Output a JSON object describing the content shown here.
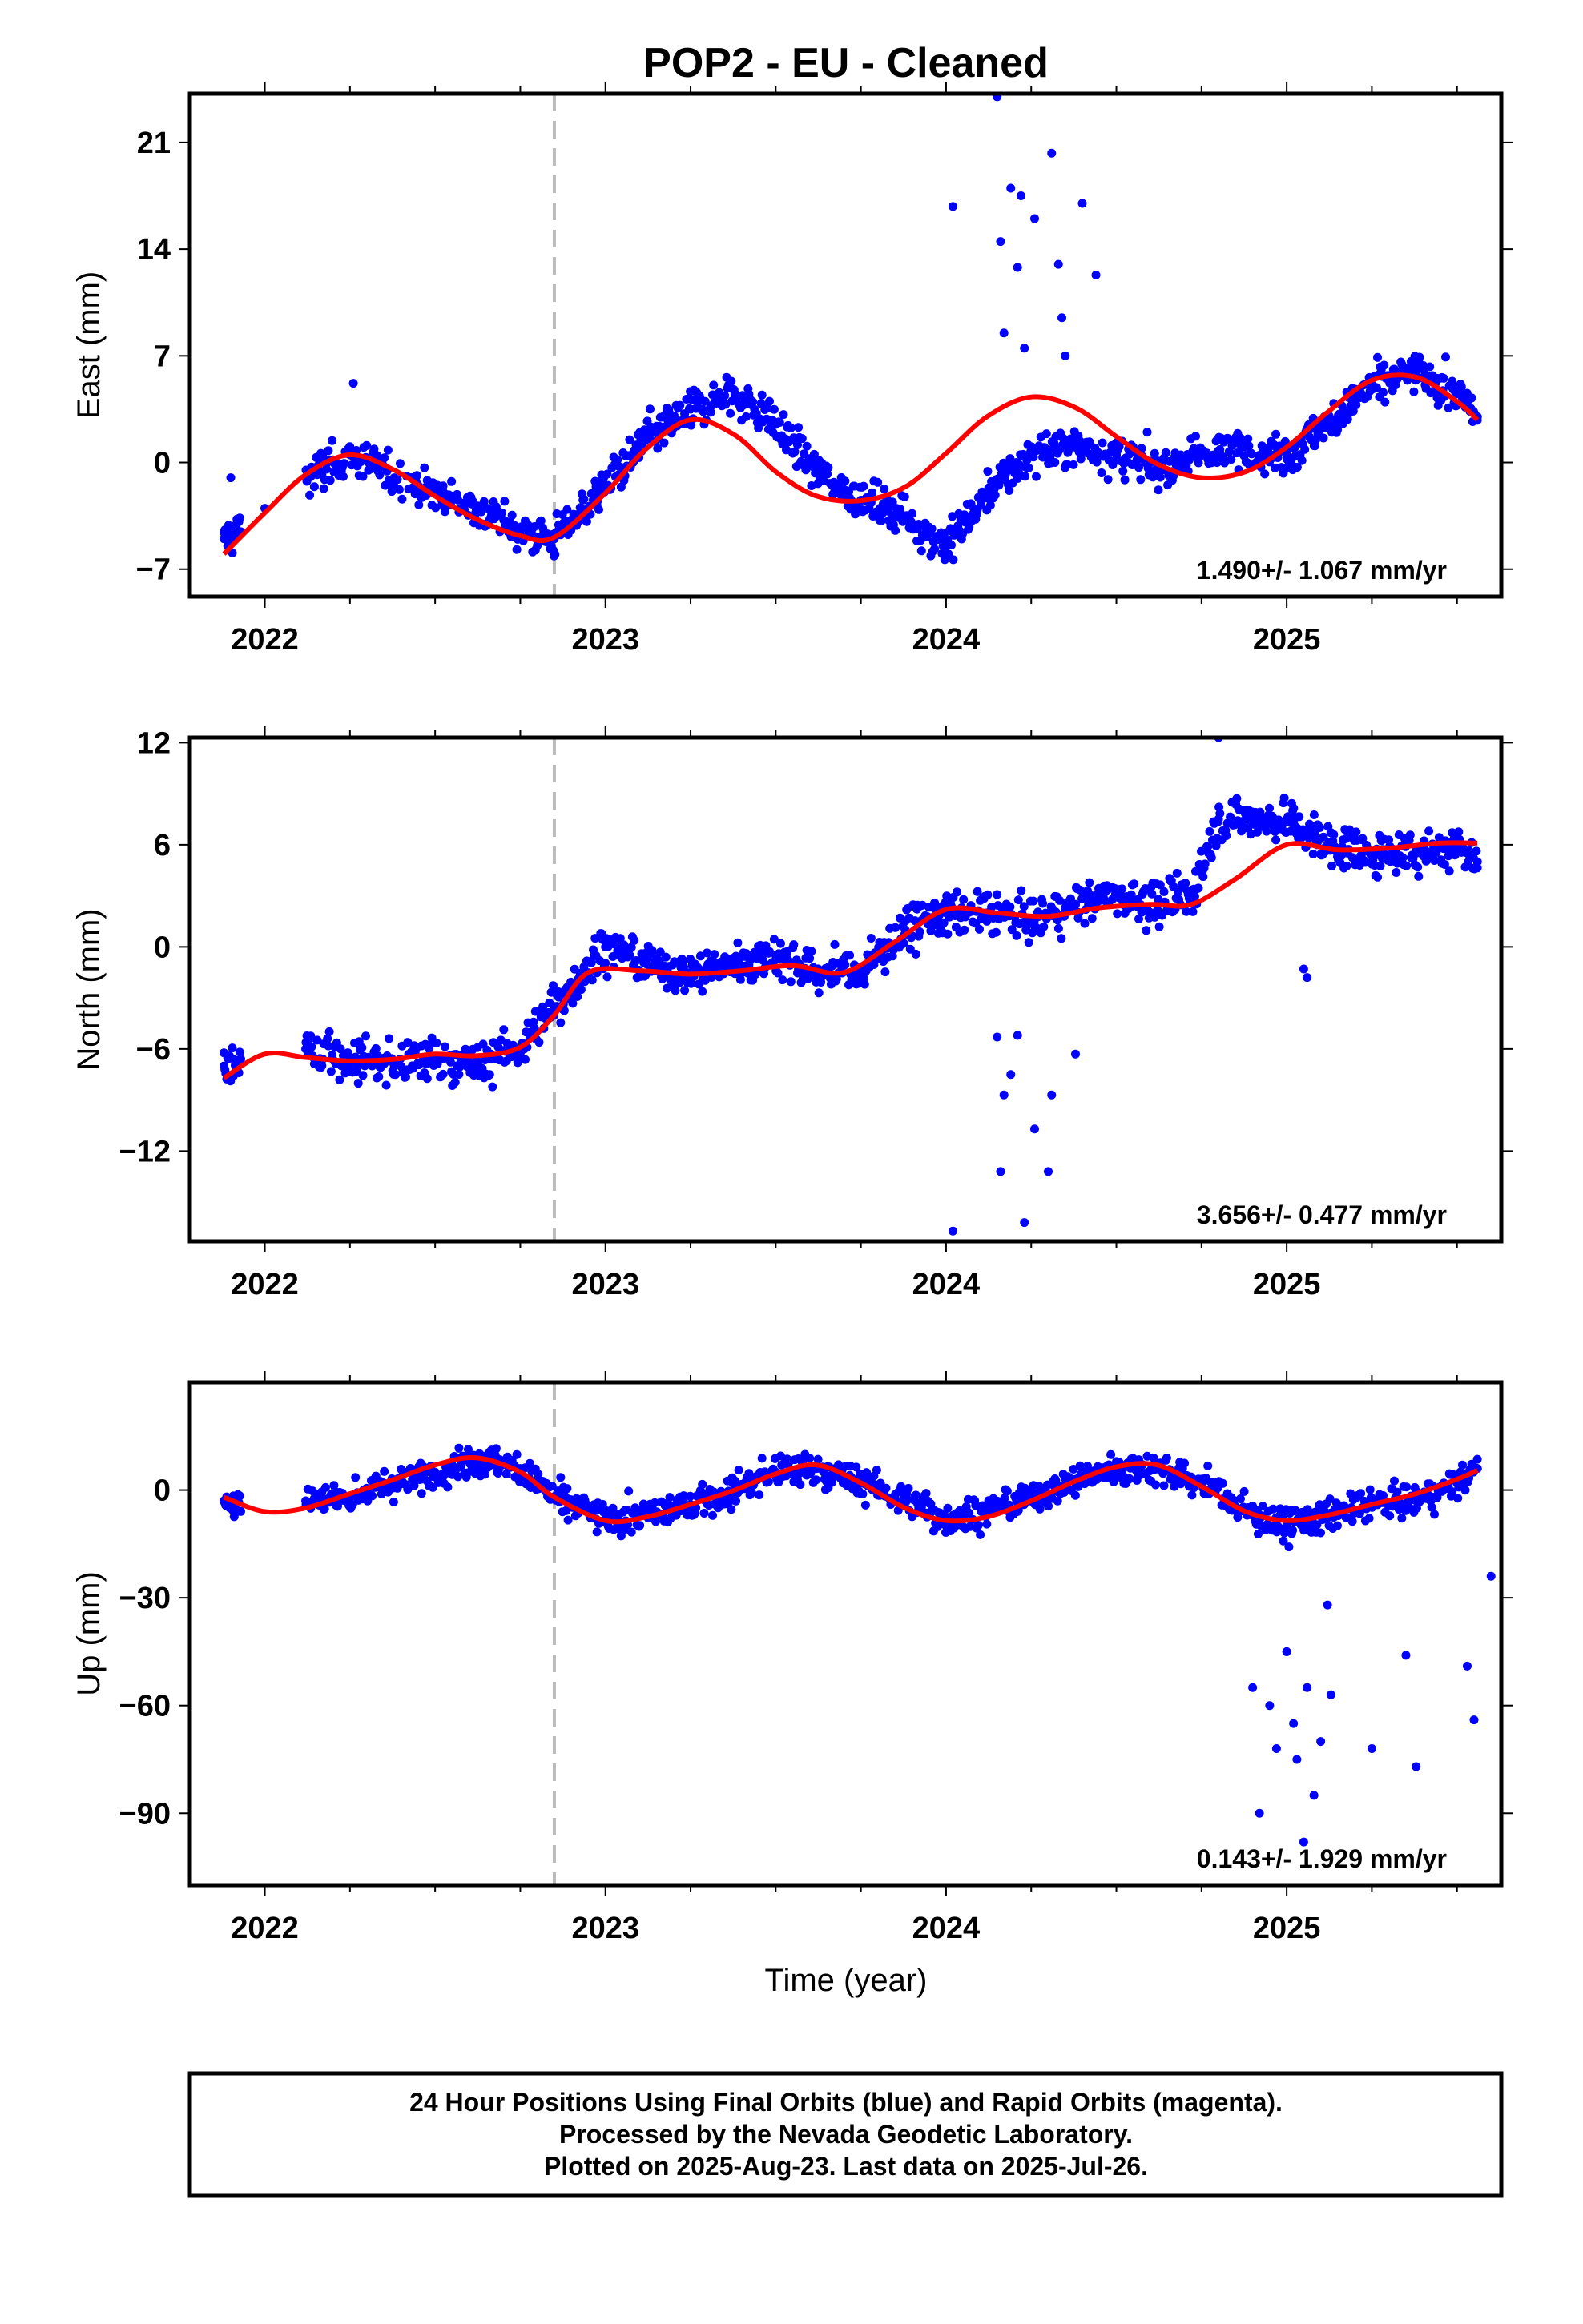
{
  "footer": {
    "line1": "24 Hour Positions Using Final Orbits (blue) and Rapid Orbits (magenta).",
    "line2": "Processed by the Nevada Geodetic Laboratory.",
    "line3": "Plotted on 2025-Aug-23. Last data on 2025-Jul-26."
  },
  "colors": {
    "final_points": "#0000ff",
    "model_line": "#ff0000",
    "equipment_change": "#bbbbbb",
    "frame": "#000000"
  },
  "chart_data": [
    {
      "type": "scatter",
      "title": "POP2  - EU - Cleaned",
      "xlabel": "",
      "ylabel": "East (mm)",
      "xlim": [
        2021.78,
        2025.63
      ],
      "ylim": [
        -8.8,
        24.2
      ],
      "yticks": [
        -7,
        0,
        7,
        14,
        21
      ],
      "xticks": [
        2022,
        2023,
        2024,
        2025
      ],
      "equipment_change_x": 2022.85,
      "rate_label": "1.490+/- 1.067 mm/yr",
      "series": [
        {
          "name": "Final Orbits (blue)",
          "style": "points",
          "x": [
            2021.88,
            2022.0,
            2022.12,
            2022.25,
            2022.38,
            2022.5,
            2022.62,
            2022.75,
            2022.85,
            2023.0,
            2023.12,
            2023.25,
            2023.38,
            2023.5,
            2023.62,
            2023.75,
            2023.88,
            2024.0,
            2024.12,
            2024.25,
            2024.38,
            2024.5,
            2024.62,
            2024.75,
            2024.88,
            2025.0,
            2025.12,
            2025.25,
            2025.38,
            2025.5,
            2025.56
          ],
          "y": [
            -5.0,
            -3.0,
            -1.0,
            0.5,
            -1.0,
            -2.0,
            -3.0,
            -4.5,
            -5.0,
            -1.5,
            1.5,
            3.5,
            4.5,
            2.5,
            -0.5,
            -2.5,
            -3.5,
            -5.5,
            -2.0,
            0.5,
            1.0,
            0.5,
            -0.5,
            0.5,
            1.0,
            0.5,
            2.5,
            5.0,
            6.0,
            4.5,
            3.0
          ]
        },
        {
          "name": "Final Orbits (blue) outliers",
          "style": "points",
          "x": [
            2024.02,
            2024.15,
            2024.16,
            2024.17,
            2024.19,
            2024.21,
            2024.22,
            2024.23,
            2024.26,
            2024.31,
            2024.33,
            2024.34,
            2024.35,
            2024.4,
            2024.44,
            2021.9,
            2022.26
          ],
          "y": [
            16.8,
            24.0,
            14.5,
            8.5,
            18.0,
            12.8,
            17.5,
            7.5,
            16.0,
            20.3,
            13.0,
            9.5,
            7.0,
            17.0,
            12.3,
            -1.0,
            5.2
          ]
        },
        {
          "name": "Model fit",
          "style": "line",
          "x": [
            2021.88,
            2022.0,
            2022.12,
            2022.25,
            2022.38,
            2022.5,
            2022.62,
            2022.75,
            2022.85,
            2023.0,
            2023.12,
            2023.25,
            2023.38,
            2023.5,
            2023.62,
            2023.75,
            2023.88,
            2024.0,
            2024.12,
            2024.25,
            2024.38,
            2024.5,
            2024.62,
            2024.75,
            2024.88,
            2025.0,
            2025.12,
            2025.25,
            2025.38,
            2025.5,
            2025.56
          ],
          "y": [
            -6.0,
            -3.3,
            -0.8,
            0.5,
            -0.5,
            -2.2,
            -3.7,
            -4.8,
            -4.9,
            -2.0,
            0.9,
            2.8,
            1.8,
            -0.6,
            -2.2,
            -2.5,
            -1.6,
            0.6,
            3.0,
            4.3,
            3.6,
            1.7,
            -0.1,
            -1.0,
            -0.6,
            1.0,
            3.3,
            5.4,
            5.6,
            4.0,
            2.8
          ]
        }
      ]
    },
    {
      "type": "scatter",
      "title": "",
      "xlabel": "",
      "ylabel": "North (mm)",
      "xlim": [
        2021.78,
        2025.63
      ],
      "ylim": [
        -17.3,
        12.3
      ],
      "yticks": [
        -12,
        -6,
        0,
        6,
        12
      ],
      "xticks": [
        2022,
        2023,
        2024,
        2025
      ],
      "equipment_change_x": 2022.85,
      "rate_label": "3.656+/- 0.477 mm/yr",
      "series": [
        {
          "name": "Final Orbits (blue)",
          "style": "points",
          "x": [
            2021.88,
            2022.12,
            2022.25,
            2022.38,
            2022.5,
            2022.62,
            2022.75,
            2022.85,
            2023.0,
            2023.12,
            2023.25,
            2023.38,
            2023.5,
            2023.62,
            2023.75,
            2023.88,
            2024.0,
            2024.12,
            2024.25,
            2024.38,
            2024.5,
            2024.62,
            2024.72,
            2024.8,
            2024.9,
            2025.0,
            2025.12,
            2025.25,
            2025.38,
            2025.5,
            2025.56
          ],
          "y": [
            -7.0,
            -6.0,
            -6.5,
            -7.0,
            -6.5,
            -7.0,
            -6.0,
            -3.5,
            0.0,
            -1.0,
            -1.5,
            -1.0,
            -0.5,
            -1.5,
            -1.5,
            1.0,
            2.0,
            2.0,
            1.5,
            2.5,
            3.0,
            2.5,
            3.0,
            7.5,
            7.5,
            7.5,
            6.0,
            5.5,
            5.5,
            6.0,
            5.0
          ]
        },
        {
          "name": "Final Orbits (blue) outliers",
          "style": "points",
          "x": [
            2024.02,
            2024.15,
            2024.16,
            2024.17,
            2024.19,
            2024.21,
            2024.23,
            2024.26,
            2024.3,
            2024.31,
            2024.38,
            2025.05,
            2025.06,
            2024.8
          ],
          "y": [
            -16.7,
            -5.3,
            -13.2,
            -8.7,
            -7.5,
            -5.2,
            -16.2,
            -10.7,
            -13.2,
            -8.7,
            -6.3,
            -1.3,
            -1.8,
            12.3
          ]
        },
        {
          "name": "Model fit",
          "style": "line",
          "x": [
            2021.88,
            2022.0,
            2022.12,
            2022.25,
            2022.38,
            2022.5,
            2022.62,
            2022.75,
            2022.85,
            2022.95,
            2023.1,
            2023.25,
            2023.4,
            2023.55,
            2023.7,
            2023.85,
            2024.0,
            2024.15,
            2024.3,
            2024.45,
            2024.6,
            2024.72,
            2024.85,
            2025.0,
            2025.15,
            2025.3,
            2025.45,
            2025.56
          ],
          "y": [
            -7.7,
            -6.3,
            -6.5,
            -6.7,
            -6.6,
            -6.3,
            -6.4,
            -5.9,
            -4.0,
            -1.5,
            -1.4,
            -1.6,
            -1.4,
            -1.1,
            -1.5,
            0.3,
            2.2,
            2.0,
            1.8,
            2.3,
            2.5,
            2.5,
            4.0,
            6.0,
            5.7,
            5.8,
            6.1,
            6.1
          ]
        }
      ]
    },
    {
      "type": "scatter",
      "title": "",
      "xlabel": "Time (year)",
      "ylabel": "Up (mm)",
      "xlim": [
        2021.78,
        2025.63
      ],
      "ylim": [
        -110,
        30
      ],
      "yticks": [
        -90,
        -60,
        -30,
        0
      ],
      "xticks": [
        2022,
        2023,
        2024,
        2025
      ],
      "equipment_change_x": 2022.85,
      "rate_label": "0.143+/- 1.929 mm/yr",
      "series": [
        {
          "name": "Final Orbits (blue)",
          "style": "points",
          "x": [
            2021.88,
            2022.12,
            2022.25,
            2022.38,
            2022.5,
            2022.62,
            2022.75,
            2022.85,
            2023.0,
            2023.12,
            2023.25,
            2023.38,
            2023.5,
            2023.62,
            2023.75,
            2023.88,
            2024.0,
            2024.12,
            2024.25,
            2024.38,
            2024.5,
            2024.62,
            2024.75,
            2024.9,
            2025.0,
            2025.12,
            2025.25,
            2025.38,
            2025.5,
            2025.56
          ],
          "y": [
            -3.0,
            -3.0,
            -2.0,
            2.0,
            5.0,
            9.0,
            6.0,
            -2.0,
            -8.0,
            -7.0,
            -4.0,
            0.0,
            5.0,
            6.0,
            2.0,
            -3.0,
            -8.0,
            -6.0,
            -2.0,
            3.0,
            6.0,
            6.0,
            2.0,
            -7.0,
            -10.0,
            -7.0,
            -4.0,
            -3.0,
            2.0,
            6.0
          ]
        },
        {
          "name": "Final Orbits (blue) outliers",
          "style": "points",
          "x": [
            2024.9,
            2024.92,
            2024.95,
            2024.97,
            2025.0,
            2025.02,
            2025.03,
            2025.05,
            2025.06,
            2025.08,
            2025.1,
            2025.12,
            2025.13,
            2025.25,
            2025.35,
            2025.38,
            2025.53,
            2025.55,
            2025.6
          ],
          "y": [
            -55.0,
            -90.0,
            -60.0,
            -72.0,
            -45.0,
            -65.0,
            -75.0,
            -98.0,
            -55.0,
            -85.0,
            -70.0,
            -32.0,
            -57.0,
            -72.0,
            -46.0,
            -77.0,
            -49.0,
            -64.0,
            -24.0
          ]
        },
        {
          "name": "Model fit",
          "style": "line",
          "x": [
            2021.88,
            2022.0,
            2022.12,
            2022.25,
            2022.38,
            2022.5,
            2022.62,
            2022.75,
            2022.85,
            2023.0,
            2023.12,
            2023.25,
            2023.38,
            2023.5,
            2023.62,
            2023.75,
            2023.88,
            2024.0,
            2024.12,
            2024.25,
            2024.38,
            2024.5,
            2024.62,
            2024.75,
            2024.88,
            2025.0,
            2025.12,
            2025.25,
            2025.38,
            2025.5,
            2025.56
          ],
          "y": [
            -2.0,
            -6.0,
            -5.0,
            -1.0,
            3.0,
            7.0,
            9.0,
            5.0,
            -2.0,
            -8.5,
            -7.5,
            -4.0,
            0.0,
            4.5,
            7.0,
            2.0,
            -5.0,
            -8.5,
            -7.5,
            -3.0,
            2.5,
            6.5,
            7.0,
            1.0,
            -6.0,
            -8.5,
            -7.0,
            -4.0,
            -1.0,
            3.0,
            5.5
          ]
        }
      ]
    }
  ]
}
